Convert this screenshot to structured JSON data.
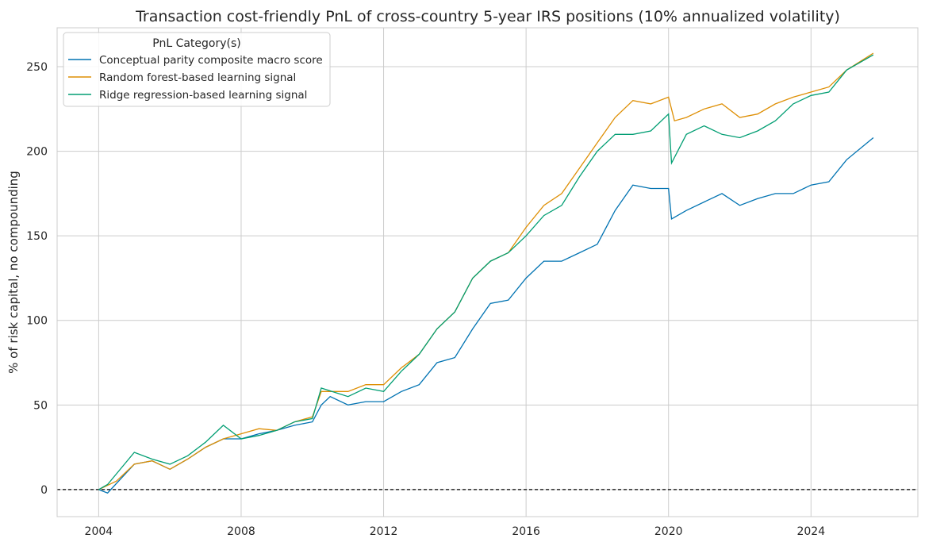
{
  "chart_data": {
    "type": "line",
    "title": "Transaction cost-friendly PnL of cross-country 5-year IRS positions (10% annualized volatility)",
    "xlabel": "",
    "ylabel": "% of risk capital, no compounding",
    "xlim": [
      "2002-11",
      "2027-01"
    ],
    "ylim": [
      -16,
      273
    ],
    "xticks": [
      "2004",
      "2008",
      "2012",
      "2016",
      "2020",
      "2024"
    ],
    "yticks": [
      0,
      50,
      100,
      150,
      200,
      250
    ],
    "grid": true,
    "zero_line": {
      "y": 0,
      "style": "dashed",
      "color": "#000000"
    },
    "legend": {
      "title": "PnL Category(s)",
      "placement": "top-left"
    },
    "series": [
      {
        "name": "Conceptual parity composite macro score",
        "color": "#0173b2",
        "x": [
          "2004-01",
          "2004-04",
          "2005-01",
          "2005-07",
          "2006-01",
          "2006-07",
          "2007-01",
          "2007-07",
          "2008-01",
          "2008-07",
          "2009-01",
          "2009-07",
          "2010-01",
          "2010-04",
          "2010-07",
          "2011-01",
          "2011-07",
          "2012-01",
          "2012-07",
          "2013-01",
          "2013-07",
          "2014-01",
          "2014-07",
          "2015-01",
          "2015-07",
          "2016-01",
          "2016-07",
          "2017-01",
          "2017-07",
          "2018-01",
          "2018-07",
          "2019-01",
          "2019-07",
          "2020-01",
          "2020-02",
          "2020-07",
          "2021-01",
          "2021-07",
          "2022-01",
          "2022-07",
          "2023-01",
          "2023-07",
          "2024-01",
          "2024-07",
          "2025-01",
          "2025-10"
        ],
        "y": [
          0,
          -2,
          15,
          17,
          12,
          18,
          25,
          30,
          30,
          33,
          35,
          38,
          40,
          50,
          55,
          50,
          52,
          52,
          58,
          62,
          75,
          78,
          95,
          110,
          112,
          125,
          135,
          135,
          140,
          145,
          165,
          180,
          178,
          178,
          160,
          165,
          170,
          175,
          168,
          172,
          175,
          175,
          180,
          182,
          195,
          208
        ]
      },
      {
        "name": "Random forest-based learning signal",
        "color": "#de8f05",
        "x": [
          "2004-01",
          "2004-07",
          "2005-01",
          "2005-07",
          "2006-01",
          "2006-07",
          "2007-01",
          "2007-07",
          "2008-01",
          "2008-07",
          "2009-01",
          "2009-07",
          "2010-01",
          "2010-04",
          "2011-01",
          "2011-07",
          "2012-01",
          "2012-07",
          "2013-01",
          "2013-07",
          "2014-01",
          "2014-07",
          "2015-01",
          "2015-07",
          "2016-01",
          "2016-07",
          "2017-01",
          "2017-07",
          "2018-01",
          "2018-07",
          "2019-01",
          "2019-07",
          "2020-01",
          "2020-03",
          "2020-07",
          "2021-01",
          "2021-07",
          "2022-01",
          "2022-07",
          "2023-01",
          "2023-07",
          "2024-01",
          "2024-07",
          "2025-01",
          "2025-10"
        ],
        "y": [
          0,
          5,
          15,
          17,
          12,
          18,
          25,
          30,
          33,
          36,
          35,
          40,
          43,
          58,
          58,
          62,
          62,
          72,
          80,
          95,
          105,
          125,
          135,
          140,
          155,
          168,
          175,
          190,
          205,
          220,
          230,
          228,
          232,
          218,
          220,
          225,
          228,
          220,
          222,
          228,
          232,
          235,
          238,
          248,
          258
        ]
      },
      {
        "name": "Ridge regression-based learning signal",
        "color": "#029e73",
        "x": [
          "2004-01",
          "2004-04",
          "2005-01",
          "2005-07",
          "2006-01",
          "2006-07",
          "2007-01",
          "2007-07",
          "2008-01",
          "2008-07",
          "2009-01",
          "2009-07",
          "2010-01",
          "2010-04",
          "2011-01",
          "2011-07",
          "2012-01",
          "2012-07",
          "2013-01",
          "2013-07",
          "2014-01",
          "2014-07",
          "2015-01",
          "2015-07",
          "2016-01",
          "2016-07",
          "2017-01",
          "2017-07",
          "2018-01",
          "2018-07",
          "2019-01",
          "2019-07",
          "2020-01",
          "2020-02",
          "2020-07",
          "2021-01",
          "2021-07",
          "2022-01",
          "2022-07",
          "2023-01",
          "2023-07",
          "2024-01",
          "2024-07",
          "2025-01",
          "2025-10"
        ],
        "y": [
          0,
          3,
          22,
          18,
          15,
          20,
          28,
          38,
          30,
          32,
          35,
          40,
          42,
          60,
          55,
          60,
          58,
          70,
          80,
          95,
          105,
          125,
          135,
          140,
          150,
          162,
          168,
          185,
          200,
          210,
          210,
          212,
          222,
          193,
          210,
          215,
          210,
          208,
          212,
          218,
          228,
          233,
          235,
          248,
          257
        ]
      }
    ]
  }
}
